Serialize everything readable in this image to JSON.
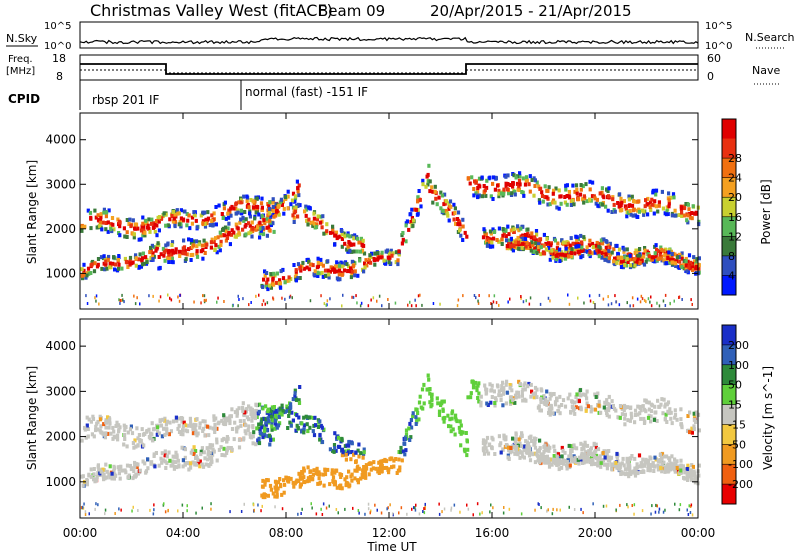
{
  "header": {
    "station": "Christmas Valley West (fitACF)",
    "beam": "Beam 09",
    "dates": "20/Apr/2015 - 21/Apr/2015"
  },
  "top_panels": {
    "nsky_label": "N.Sky",
    "nsky_ticks": [
      "10^5",
      "10^0"
    ],
    "nsearch_label": "N.Search",
    "freq_label_1": "Freq.",
    "freq_label_2": "[MHz]",
    "freq_ticks": [
      "18",
      "8"
    ],
    "nave_ticks": [
      "60",
      "0"
    ],
    "nave_label": "Nave",
    "cpid_label": "CPID",
    "cpid_segments": [
      {
        "label": "rbsp 201 IF",
        "start_ut": 0
      },
      {
        "label": "normal (fast) -151 IF",
        "start_ut": 6
      }
    ]
  },
  "chart_data": [
    {
      "type": "heatmap",
      "name": "power",
      "xlabel": "Time UT",
      "ylabel": "Slant Range [km]",
      "xlim": [
        0,
        24
      ],
      "ylim": [
        200,
        4600
      ],
      "x_ticks": [
        "00:00",
        "04:00",
        "08:00",
        "12:00",
        "16:00",
        "20:00",
        "00:00"
      ],
      "y_ticks": [
        1000,
        2000,
        3000,
        4000
      ],
      "colorbar_label": "Power [dB]",
      "colorbar_ticks": [
        4,
        8,
        12,
        16,
        20,
        24,
        28
      ],
      "colorbar_colors": [
        "#0019ff",
        "#2f4fbf",
        "#3a7a3a",
        "#58b858",
        "#c8d030",
        "#f4a020",
        "#f07010",
        "#e83010",
        "#e00000"
      ]
    },
    {
      "type": "heatmap",
      "name": "velocity",
      "xlabel": "Time UT",
      "ylabel": "Slant Range [km]",
      "xlim": [
        0,
        24
      ],
      "ylim": [
        200,
        4600
      ],
      "x_ticks": [
        "00:00",
        "04:00",
        "08:00",
        "12:00",
        "16:00",
        "20:00",
        "00:00"
      ],
      "y_ticks": [
        1000,
        2000,
        3000,
        4000
      ],
      "colorbar_label": "Velocity [m s^-1]",
      "colorbar_ticks": [
        200,
        100,
        50,
        15,
        -15,
        -50,
        -100,
        -200
      ],
      "colorbar_colors": [
        "#1a2fc8",
        "#3060b8",
        "#2e8a3a",
        "#5fcf3a",
        "#c6c6c0",
        "#f2c840",
        "#f09a20",
        "#f06010",
        "#e80000"
      ]
    }
  ]
}
